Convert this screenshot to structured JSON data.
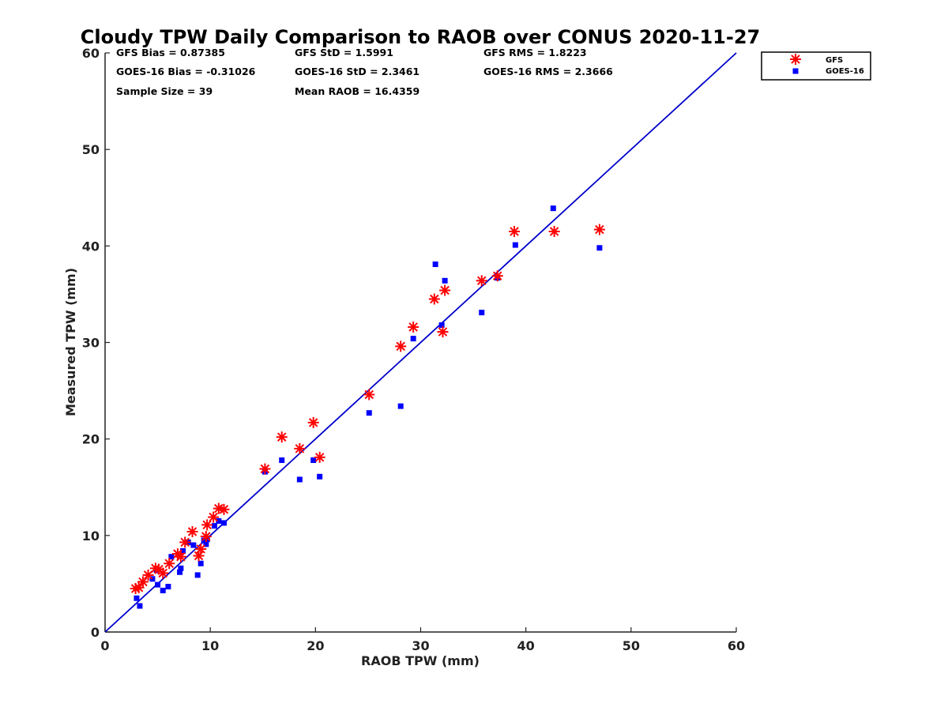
{
  "chart_data": {
    "type": "scatter",
    "title": "Cloudy TPW Daily Comparison to RAOB over CONUS 2020-11-27",
    "xlabel": "RAOB TPW (mm)",
    "ylabel": "Measured TPW (mm)",
    "xlim": [
      0,
      60
    ],
    "ylim": [
      0,
      60
    ],
    "x_ticks": [
      0,
      10,
      20,
      30,
      40,
      50,
      60
    ],
    "y_ticks": [
      0,
      10,
      20,
      30,
      40,
      50,
      60
    ],
    "grid": false,
    "legend_position": "top-right-outside",
    "reference_line": {
      "type": "one-to-one",
      "color": "#0000cc"
    },
    "stats": [
      [
        "GFS Bias = 0.87385",
        "GFS StD = 1.5991",
        "GFS RMS = 1.8223"
      ],
      [
        "GOES-16 Bias = -0.31026",
        "GOES-16 StD = 2.3461",
        "GOES-16 RMS = 2.3666"
      ],
      [
        "Sample Size = 39",
        "Mean RAOB = 16.4359"
      ]
    ],
    "series": [
      {
        "name": "GFS",
        "marker": "asterisk",
        "color": "#ff0000",
        "points": [
          [
            2.9,
            4.5
          ],
          [
            3.2,
            4.6
          ],
          [
            3.6,
            5.2
          ],
          [
            4.1,
            5.9
          ],
          [
            4.8,
            6.6
          ],
          [
            5.1,
            6.5
          ],
          [
            5.5,
            6.1
          ],
          [
            6.1,
            7.1
          ],
          [
            6.9,
            8.1
          ],
          [
            7.2,
            7.8
          ],
          [
            7.6,
            9.3
          ],
          [
            8.3,
            10.4
          ],
          [
            8.9,
            7.9
          ],
          [
            9.1,
            8.6
          ],
          [
            9.6,
            9.9
          ],
          [
            9.7,
            11.1
          ],
          [
            10.3,
            11.9
          ],
          [
            10.8,
            12.8
          ],
          [
            11.3,
            12.7
          ],
          [
            15.2,
            16.9
          ],
          [
            16.8,
            20.2
          ],
          [
            18.5,
            19.0
          ],
          [
            19.8,
            21.7
          ],
          [
            20.4,
            18.1
          ],
          [
            25.1,
            24.6
          ],
          [
            28.1,
            29.6
          ],
          [
            29.3,
            31.6
          ],
          [
            31.3,
            34.5
          ],
          [
            32.1,
            31.1
          ],
          [
            32.3,
            35.4
          ],
          [
            35.8,
            36.4
          ],
          [
            37.3,
            36.9
          ],
          [
            38.9,
            41.5
          ],
          [
            42.7,
            41.5
          ],
          [
            47.0,
            41.7
          ]
        ]
      },
      {
        "name": "GOES-16",
        "marker": "square",
        "color": "#0000ff",
        "points": [
          [
            3.0,
            3.5
          ],
          [
            3.3,
            2.7
          ],
          [
            4.5,
            5.5
          ],
          [
            4.9,
            6.4
          ],
          [
            5.0,
            4.9
          ],
          [
            5.5,
            4.3
          ],
          [
            6.0,
            4.7
          ],
          [
            6.3,
            7.8
          ],
          [
            7.1,
            6.2
          ],
          [
            7.2,
            6.6
          ],
          [
            7.4,
            8.4
          ],
          [
            7.9,
            9.3
          ],
          [
            8.4,
            9.0
          ],
          [
            8.8,
            5.9
          ],
          [
            9.1,
            7.1
          ],
          [
            9.4,
            9.5
          ],
          [
            9.6,
            9.1
          ],
          [
            9.7,
            9.6
          ],
          [
            10.4,
            11.0
          ],
          [
            10.8,
            11.5
          ],
          [
            11.3,
            11.3
          ],
          [
            15.2,
            16.6
          ],
          [
            16.8,
            17.8
          ],
          [
            18.5,
            15.8
          ],
          [
            19.8,
            17.8
          ],
          [
            20.4,
            16.1
          ],
          [
            25.1,
            22.7
          ],
          [
            28.1,
            23.4
          ],
          [
            29.3,
            30.4
          ],
          [
            31.4,
            38.1
          ],
          [
            32.0,
            31.8
          ],
          [
            32.3,
            36.4
          ],
          [
            35.8,
            33.1
          ],
          [
            37.3,
            36.7
          ],
          [
            39.0,
            40.1
          ],
          [
            42.6,
            43.9
          ],
          [
            47.0,
            39.8
          ]
        ]
      }
    ]
  }
}
